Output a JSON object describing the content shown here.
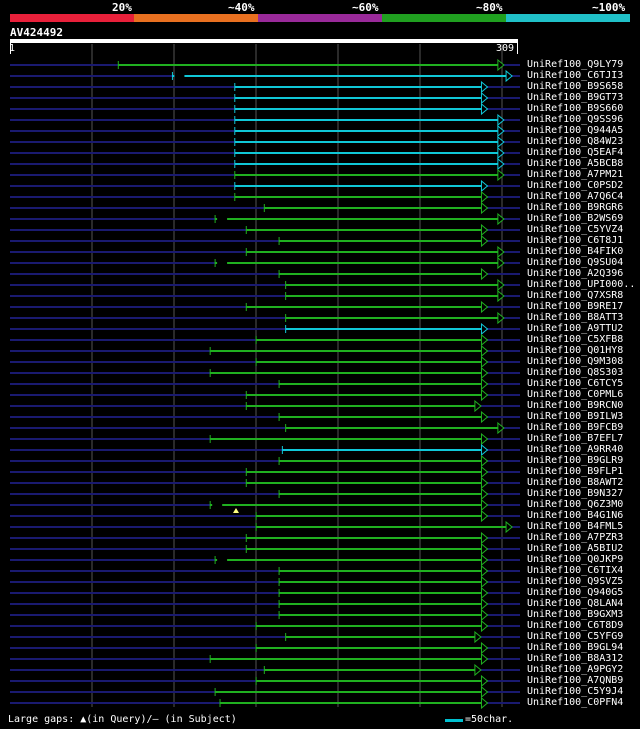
{
  "scale": {
    "labels": [
      "20%",
      "~40%",
      "~60%",
      "~80%",
      "~100%"
    ],
    "colors": [
      "#e8203a",
      "#e87020",
      "#9a2a9a",
      "#20a020",
      "#20c0c8"
    ]
  },
  "query": {
    "name": "AV424492",
    "start": "1",
    "end": "309",
    "length": 309
  },
  "colors": {
    "green": "#20b020",
    "cyan": "#10c8d8",
    "dashed": "#1a1a70",
    "grid": "#555555"
  },
  "hits": [
    {
      "label": "UniRef100_Q9LY79",
      "start": 66,
      "end": 301,
      "color": "green",
      "gap": false
    },
    {
      "label": "UniRef100_C6TJI3",
      "start": 99,
      "end": 306,
      "color": "cyan",
      "gap": true
    },
    {
      "label": "UniRef100_B9S658",
      "start": 137,
      "end": 291,
      "color": "cyan",
      "gap": false
    },
    {
      "label": "UniRef100_B9GT73",
      "start": 137,
      "end": 291,
      "color": "cyan",
      "gap": false
    },
    {
      "label": "UniRef100_B9S660",
      "start": 137,
      "end": 291,
      "color": "cyan",
      "gap": false
    },
    {
      "label": "UniRef100_Q9SS96",
      "start": 137,
      "end": 301,
      "color": "cyan",
      "gap": false
    },
    {
      "label": "UniRef100_Q944A5",
      "start": 137,
      "end": 301,
      "color": "cyan",
      "gap": false
    },
    {
      "label": "UniRef100_Q84W23",
      "start": 137,
      "end": 301,
      "color": "cyan",
      "gap": false
    },
    {
      "label": "UniRef100_Q5EAF4",
      "start": 137,
      "end": 301,
      "color": "cyan",
      "gap": false
    },
    {
      "label": "UniRef100_A5BCB8",
      "start": 137,
      "end": 301,
      "color": "cyan",
      "gap": false
    },
    {
      "label": "UniRef100_A7PM21",
      "start": 137,
      "end": 301,
      "color": "green",
      "gap": false
    },
    {
      "label": "UniRef100_C0PSD2",
      "start": 137,
      "end": 291,
      "color": "cyan",
      "gap": false
    },
    {
      "label": "UniRef100_A7Q6C4",
      "start": 137,
      "end": 291,
      "color": "green",
      "gap": false
    },
    {
      "label": "UniRef100_B9RGR6",
      "start": 155,
      "end": 291,
      "color": "green",
      "gap": false
    },
    {
      "label": "UniRef100_B2WS69",
      "start": 125,
      "end": 301,
      "color": "green",
      "gap": true
    },
    {
      "label": "UniRef100_C5YVZ4",
      "start": 144,
      "end": 291,
      "color": "green",
      "gap": false
    },
    {
      "label": "UniRef100_C6T8J1",
      "start": 164,
      "end": 291,
      "color": "green",
      "gap": false
    },
    {
      "label": "UniRef100_B4FIK0",
      "start": 144,
      "end": 301,
      "color": "green",
      "gap": false
    },
    {
      "label": "UniRef100_Q9SU04",
      "start": 125,
      "end": 301,
      "color": "green",
      "gap": true
    },
    {
      "label": "UniRef100_A2Q396",
      "start": 164,
      "end": 291,
      "color": "green",
      "gap": false
    },
    {
      "label": "UniRef100_UPI000..",
      "start": 168,
      "end": 301,
      "color": "green",
      "gap": false
    },
    {
      "label": "UniRef100_Q7XSR8",
      "start": 168,
      "end": 301,
      "color": "green",
      "gap": false
    },
    {
      "label": "UniRef100_B9RE17",
      "start": 144,
      "end": 291,
      "color": "green",
      "gap": false
    },
    {
      "label": "UniRef100_B8ATT3",
      "start": 168,
      "end": 301,
      "color": "green",
      "gap": false
    },
    {
      "label": "UniRef100_A9TTU2",
      "start": 168,
      "end": 291,
      "color": "cyan",
      "gap": false
    },
    {
      "label": "UniRef100_C5XFB8",
      "start": 150,
      "end": 291,
      "color": "green",
      "gap": false
    },
    {
      "label": "UniRef100_Q01HY8",
      "start": 122,
      "end": 291,
      "color": "green",
      "gap": false
    },
    {
      "label": "UniRef100_Q9M308",
      "start": 150,
      "end": 291,
      "color": "green",
      "gap": false
    },
    {
      "label": "UniRef100_Q8S303",
      "start": 122,
      "end": 291,
      "color": "green",
      "gap": false
    },
    {
      "label": "UniRef100_C6TCY5",
      "start": 164,
      "end": 291,
      "color": "green",
      "gap": false
    },
    {
      "label": "UniRef100_C0PML6",
      "start": 144,
      "end": 291,
      "color": "green",
      "gap": false
    },
    {
      "label": "UniRef100_B9RCN0",
      "start": 144,
      "end": 287,
      "color": "green",
      "gap": false
    },
    {
      "label": "UniRef100_B9ILW3",
      "start": 164,
      "end": 291,
      "color": "green",
      "gap": false
    },
    {
      "label": "UniRef100_B9FCB9",
      "start": 168,
      "end": 301,
      "color": "green",
      "gap": false
    },
    {
      "label": "UniRef100_B7EFL7",
      "start": 122,
      "end": 291,
      "color": "green",
      "gap": false
    },
    {
      "label": "UniRef100_A9RR40",
      "start": 166,
      "end": 291,
      "color": "cyan",
      "gap": false
    },
    {
      "label": "UniRef100_B9GLR9",
      "start": 164,
      "end": 291,
      "color": "green",
      "gap": false
    },
    {
      "label": "UniRef100_B9FLP1",
      "start": 144,
      "end": 291,
      "color": "green",
      "gap": false
    },
    {
      "label": "UniRef100_B8AWT2",
      "start": 144,
      "end": 291,
      "color": "green",
      "gap": false
    },
    {
      "label": "UniRef100_B9N327",
      "start": 164,
      "end": 291,
      "color": "green",
      "gap": false
    },
    {
      "label": "UniRef100_Q6Z3M0",
      "start": 122,
      "end": 291,
      "color": "green",
      "gap": true
    },
    {
      "label": "UniRef100_B4G1N6",
      "start": 150,
      "end": 291,
      "color": "green",
      "gap": false
    },
    {
      "label": "UniRef100_B4FML5",
      "start": 150,
      "end": 306,
      "color": "green",
      "gap": false
    },
    {
      "label": "UniRef100_A7PZR3",
      "start": 144,
      "end": 291,
      "color": "green",
      "gap": false
    },
    {
      "label": "UniRef100_A5BIU2",
      "start": 144,
      "end": 291,
      "color": "green",
      "gap": false
    },
    {
      "label": "UniRef100_Q0JKP9",
      "start": 125,
      "end": 291,
      "color": "green",
      "gap": true
    },
    {
      "label": "UniRef100_C6TIX4",
      "start": 164,
      "end": 291,
      "color": "green",
      "gap": false
    },
    {
      "label": "UniRef100_Q9SVZ5",
      "start": 164,
      "end": 291,
      "color": "green",
      "gap": false
    },
    {
      "label": "UniRef100_Q940G5",
      "start": 164,
      "end": 291,
      "color": "green",
      "gap": false
    },
    {
      "label": "UniRef100_Q8LAN4",
      "start": 164,
      "end": 291,
      "color": "green",
      "gap": false
    },
    {
      "label": "UniRef100_B9GXM3",
      "start": 164,
      "end": 291,
      "color": "green",
      "gap": false
    },
    {
      "label": "UniRef100_C6T8D9",
      "start": 150,
      "end": 291,
      "color": "green",
      "gap": false
    },
    {
      "label": "UniRef100_C5YFG9",
      "start": 168,
      "end": 287,
      "color": "green",
      "gap": false
    },
    {
      "label": "UniRef100_B9GL94",
      "start": 150,
      "end": 291,
      "color": "green",
      "gap": false
    },
    {
      "label": "UniRef100_B8A312",
      "start": 122,
      "end": 291,
      "color": "green",
      "gap": false
    },
    {
      "label": "UniRef100_A9PGY2",
      "start": 155,
      "end": 287,
      "color": "green",
      "gap": false
    },
    {
      "label": "UniRef100_A7QNB9",
      "start": 150,
      "end": 291,
      "color": "green",
      "gap": false
    },
    {
      "label": "UniRef100_C5Y9J4",
      "start": 125,
      "end": 291,
      "color": "green",
      "gap": false
    },
    {
      "label": "UniRef100_C0PFN4",
      "start": 128,
      "end": 291,
      "color": "green",
      "gap": false
    }
  ],
  "legend": {
    "text": "Large gaps: ▲(in Query)/– (in Subject)",
    "scale_text": "=50char."
  }
}
